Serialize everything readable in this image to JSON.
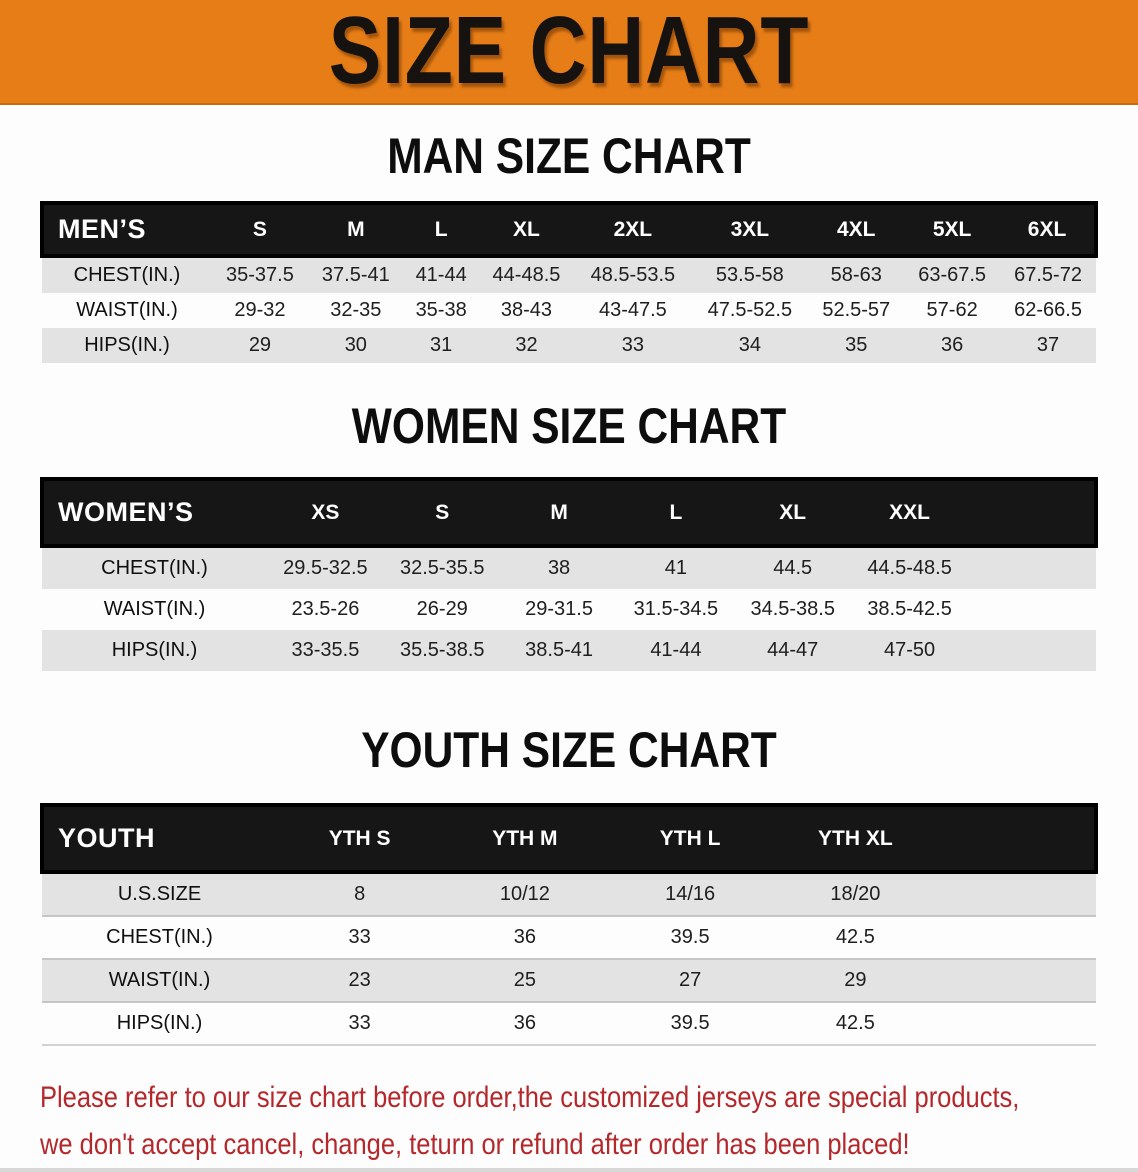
{
  "banner": {
    "title": "SIZE CHART"
  },
  "sections": {
    "men": {
      "heading": "MAN SIZE CHART",
      "table": {
        "corner_label": "MEN’S",
        "columns": [
          "S",
          "M",
          "L",
          "XL",
          "2XL",
          "3XL",
          "4XL",
          "5XL",
          "6XL"
        ],
        "rows": [
          {
            "label": "CHEST(IN.)",
            "values": [
              "35-37.5",
              "37.5-41",
              "41-44",
              "44-48.5",
              "48.5-53.5",
              "53.5-58",
              "58-63",
              "63-67.5",
              "67.5-72"
            ]
          },
          {
            "label": "WAIST(IN.)",
            "values": [
              "29-32",
              "32-35",
              "35-38",
              "38-43",
              "43-47.5",
              "47.5-52.5",
              "52.5-57",
              "57-62",
              "62-66.5"
            ]
          },
          {
            "label": "HIPS(IN.)",
            "values": [
              "29",
              "30",
              "31",
              "32",
              "33",
              "34",
              "35",
              "36",
              "37"
            ]
          }
        ]
      }
    },
    "women": {
      "heading": "WOMEN SIZE CHART",
      "table": {
        "corner_label": "WOMEN’S",
        "columns": [
          "XS",
          "S",
          "M",
          "L",
          "XL",
          "XXL"
        ],
        "rows": [
          {
            "label": "CHEST(IN.)",
            "values": [
              "29.5-32.5",
              "32.5-35.5",
              "38",
              "41",
              "44.5",
              "44.5-48.5"
            ]
          },
          {
            "label": "WAIST(IN.)",
            "values": [
              "23.5-26",
              "26-29",
              "29-31.5",
              "31.5-34.5",
              "34.5-38.5",
              "38.5-42.5"
            ]
          },
          {
            "label": "HIPS(IN.)",
            "values": [
              "33-35.5",
              "35.5-38.5",
              "38.5-41",
              "41-44",
              "44-47",
              "47-50"
            ]
          }
        ]
      }
    },
    "youth": {
      "heading": "YOUTH SIZE CHART",
      "table": {
        "corner_label": "YOUTH",
        "columns": [
          "YTH S",
          "YTH M",
          "YTH L",
          "YTH XL"
        ],
        "rows": [
          {
            "label": "U.S.SIZE",
            "values": [
              "8",
              "10/12",
              "14/16",
              "18/20"
            ]
          },
          {
            "label": "CHEST(IN.)",
            "values": [
              "33",
              "36",
              "39.5",
              "42.5"
            ]
          },
          {
            "label": "WAIST(IN.)",
            "values": [
              "23",
              "25",
              "27",
              "29"
            ]
          },
          {
            "label": "HIPS(IN.)",
            "values": [
              "33",
              "36",
              "39.5",
              "42.5"
            ]
          }
        ]
      }
    }
  },
  "note": {
    "line1": "Please refer to our size chart before order,the customized jerseys are special products,",
    "line2": "we don't accept cancel, change, teturn or refund after order has been placed!"
  },
  "colors": {
    "banner_bg": "#e67d17",
    "title_text": "#151210",
    "header_bar_bg": "#161616",
    "row_stripe": "#e3e3e3",
    "note_text": "#b4282c"
  }
}
